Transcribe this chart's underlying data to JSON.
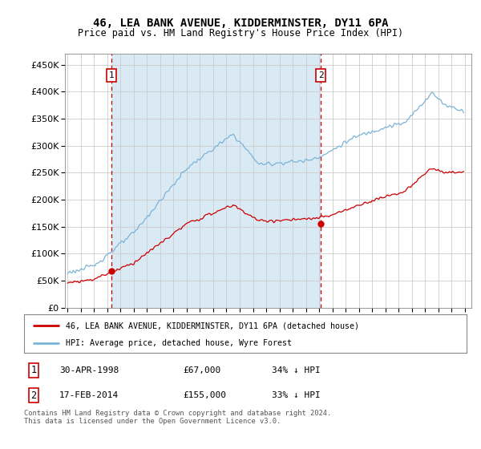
{
  "title": "46, LEA BANK AVENUE, KIDDERMINSTER, DY11 6PA",
  "subtitle": "Price paid vs. HM Land Registry's House Price Index (HPI)",
  "legend_line1": "46, LEA BANK AVENUE, KIDDERMINSTER, DY11 6PA (detached house)",
  "legend_line2": "HPI: Average price, detached house, Wyre Forest",
  "annotation1_date": "30-APR-1998",
  "annotation1_price": "£67,000",
  "annotation1_hpi": "34% ↓ HPI",
  "annotation2_date": "17-FEB-2014",
  "annotation2_price": "£155,000",
  "annotation2_hpi": "33% ↓ HPI",
  "footer": "Contains HM Land Registry data © Crown copyright and database right 2024.\nThis data is licensed under the Open Government Licence v3.0.",
  "sale1_year": 1998.33,
  "sale1_value": 67000,
  "sale2_year": 2014.12,
  "sale2_value": 155000,
  "hpi_color": "#7ab4d8",
  "price_color": "#cc0000",
  "vline_color": "#cc0000",
  "shade_color": "#daeaf5",
  "plot_bg": "#f5f5f5",
  "yticks": [
    0,
    50000,
    100000,
    150000,
    200000,
    250000,
    300000,
    350000,
    400000,
    450000
  ],
  "ylim": [
    0,
    470000
  ],
  "xlim_start": 1994.8,
  "xlim_end": 2025.5
}
